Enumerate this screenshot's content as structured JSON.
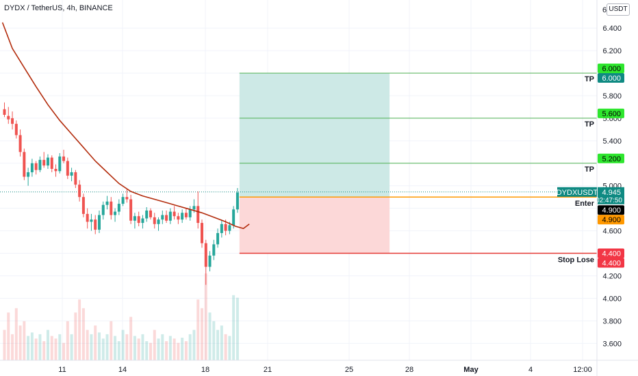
{
  "title": "DYDX / TetherUS, 4h, BINANCE",
  "currency": "USDT",
  "colors": {
    "up": "#26a69a",
    "down": "#ef5350",
    "ma": "#b22a0a",
    "profit_zone": "#cde9e6",
    "loss_zone": "#fcd8d8",
    "tp_line": "#4caf50",
    "stop_line": "#e53935",
    "entry_line": "#ff9800",
    "tp_label": "#2ee62e",
    "teal": "#0f8a82",
    "orange": "#ff9800",
    "red": "#f23645"
  },
  "chart_data": {
    "type": "candlestick",
    "symbol": "DYDXUSDT",
    "last_price": "4.945",
    "countdown": "02:47:50",
    "y_axis": {
      "min": 3.45,
      "max": 6.65,
      "ticks": [
        "6.400",
        "6.200",
        "5.800",
        "5.600",
        "5.400",
        "5.000",
        "4.600",
        "4.200",
        "4.000",
        "3.800",
        "3.600"
      ],
      "top_partial": "6"
    },
    "x_axis": {
      "labels": [
        "11",
        "14",
        "18",
        "21",
        "25",
        "28",
        "May",
        "4",
        "12:00"
      ]
    },
    "ohlc": [
      [
        5.68,
        5.74,
        5.61,
        5.63
      ],
      [
        5.62,
        5.7,
        5.55,
        5.59
      ],
      [
        5.6,
        5.66,
        5.5,
        5.55
      ],
      [
        5.55,
        5.58,
        5.42,
        5.45
      ],
      [
        5.45,
        5.5,
        5.26,
        5.3
      ],
      [
        5.3,
        5.33,
        5.05,
        5.08
      ],
      [
        5.08,
        5.16,
        5.0,
        5.12
      ],
      [
        5.12,
        5.24,
        5.08,
        5.2
      ],
      [
        5.2,
        5.22,
        5.1,
        5.14
      ],
      [
        5.14,
        5.26,
        5.12,
        5.23
      ],
      [
        5.23,
        5.3,
        5.16,
        5.18
      ],
      [
        5.18,
        5.28,
        5.15,
        5.25
      ],
      [
        5.25,
        5.27,
        5.12,
        5.15
      ],
      [
        5.15,
        5.19,
        5.08,
        5.13
      ],
      [
        5.13,
        5.29,
        5.11,
        5.26
      ],
      [
        5.26,
        5.32,
        5.2,
        5.22
      ],
      [
        5.22,
        5.25,
        5.06,
        5.09
      ],
      [
        5.09,
        5.16,
        5.04,
        5.12
      ],
      [
        5.12,
        5.14,
        4.98,
        5.01
      ],
      [
        5.01,
        5.05,
        4.86,
        4.9
      ],
      [
        4.9,
        4.93,
        4.72,
        4.75
      ],
      [
        4.75,
        4.8,
        4.62,
        4.68
      ],
      [
        4.68,
        4.75,
        4.6,
        4.7
      ],
      [
        4.7,
        4.74,
        4.57,
        4.61
      ],
      [
        4.61,
        4.78,
        4.58,
        4.74
      ],
      [
        4.74,
        4.86,
        4.7,
        4.83
      ],
      [
        4.83,
        4.91,
        4.79,
        4.86
      ],
      [
        4.86,
        4.9,
        4.7,
        4.74
      ],
      [
        4.74,
        4.8,
        4.68,
        4.77
      ],
      [
        4.77,
        4.88,
        4.74,
        4.84
      ],
      [
        4.84,
        4.93,
        4.82,
        4.9
      ],
      [
        4.9,
        4.97,
        4.85,
        4.88
      ],
      [
        4.88,
        4.92,
        4.66,
        4.69
      ],
      [
        4.69,
        4.76,
        4.62,
        4.73
      ],
      [
        4.73,
        4.77,
        4.64,
        4.67
      ],
      [
        4.67,
        4.74,
        4.62,
        4.71
      ],
      [
        4.71,
        4.81,
        4.68,
        4.78
      ],
      [
        4.78,
        4.8,
        4.7,
        4.72
      ],
      [
        4.72,
        4.76,
        4.62,
        4.66
      ],
      [
        4.66,
        4.72,
        4.6,
        4.7
      ],
      [
        4.7,
        4.78,
        4.66,
        4.74
      ],
      [
        4.74,
        4.78,
        4.67,
        4.69
      ],
      [
        4.69,
        4.8,
        4.66,
        4.77
      ],
      [
        4.77,
        4.82,
        4.7,
        4.73
      ],
      [
        4.73,
        4.76,
        4.66,
        4.7
      ],
      [
        4.7,
        4.79,
        4.67,
        4.76
      ],
      [
        4.76,
        4.8,
        4.7,
        4.72
      ],
      [
        4.72,
        4.82,
        4.69,
        4.79
      ],
      [
        4.79,
        4.88,
        4.76,
        4.82
      ],
      [
        4.82,
        4.95,
        4.62,
        4.67
      ],
      [
        4.67,
        4.7,
        4.45,
        4.49
      ],
      [
        4.49,
        4.52,
        4.12,
        4.28
      ],
      [
        4.28,
        4.42,
        4.24,
        4.38
      ],
      [
        4.38,
        4.52,
        4.34,
        4.48
      ],
      [
        4.48,
        4.62,
        4.45,
        4.58
      ],
      [
        4.58,
        4.7,
        4.54,
        4.66
      ],
      [
        4.66,
        4.7,
        4.56,
        4.6
      ],
      [
        4.6,
        4.68,
        4.57,
        4.65
      ],
      [
        4.65,
        4.82,
        4.62,
        4.79
      ],
      [
        4.79,
        4.98,
        4.76,
        4.94
      ]
    ],
    "volume": [
      0.35,
      0.55,
      0.3,
      0.6,
      0.4,
      0.45,
      0.28,
      0.32,
      0.25,
      0.3,
      0.22,
      0.35,
      0.28,
      0.25,
      0.3,
      0.2,
      0.45,
      0.3,
      0.55,
      0.7,
      0.6,
      0.35,
      0.3,
      0.4,
      0.32,
      0.25,
      0.3,
      0.45,
      0.28,
      0.22,
      0.35,
      0.3,
      0.5,
      0.28,
      0.25,
      0.3,
      0.22,
      0.2,
      0.35,
      0.25,
      0.3,
      0.22,
      0.28,
      0.25,
      0.2,
      0.26,
      0.22,
      0.3,
      0.35,
      0.7,
      0.6,
      1.0,
      0.55,
      0.45,
      0.35,
      0.4,
      0.3,
      0.28,
      0.75,
      0.72
    ],
    "ma_curve": [
      [
        -0.5,
        6.45
      ],
      [
        2,
        6.22
      ],
      [
        5,
        6.05
      ],
      [
        8,
        5.88
      ],
      [
        11,
        5.72
      ],
      [
        14,
        5.58
      ],
      [
        17,
        5.46
      ],
      [
        20,
        5.34
      ],
      [
        23,
        5.22
      ],
      [
        26,
        5.12
      ],
      [
        29,
        5.02
      ],
      [
        32,
        4.95
      ],
      [
        35,
        4.91
      ],
      [
        38,
        4.88
      ],
      [
        41,
        4.85
      ],
      [
        44,
        4.82
      ],
      [
        47,
        4.79
      ],
      [
        50,
        4.76
      ],
      [
        53,
        4.72
      ],
      [
        56,
        4.68
      ],
      [
        58.5,
        4.64
      ],
      [
        60.5,
        4.62
      ],
      [
        62,
        4.66
      ]
    ],
    "position": {
      "entry": 4.9,
      "stop": 4.4,
      "take_profits": [
        5.2,
        5.6,
        6.0
      ],
      "zone_from_index": 59.5,
      "zone_to_index": 97.5
    },
    "annotations": {
      "tp_label": "TP",
      "entry_label": "Enter",
      "stop_label": "Stop Lose"
    },
    "price_labels": {
      "tp_upper": [
        "6.000",
        "5.600",
        "5.200"
      ],
      "tp_lower": "6.000",
      "entry_black": "4.900",
      "entry_orange": "4.900",
      "stop_upper": "4.400",
      "stop_lower": "4.400"
    }
  }
}
